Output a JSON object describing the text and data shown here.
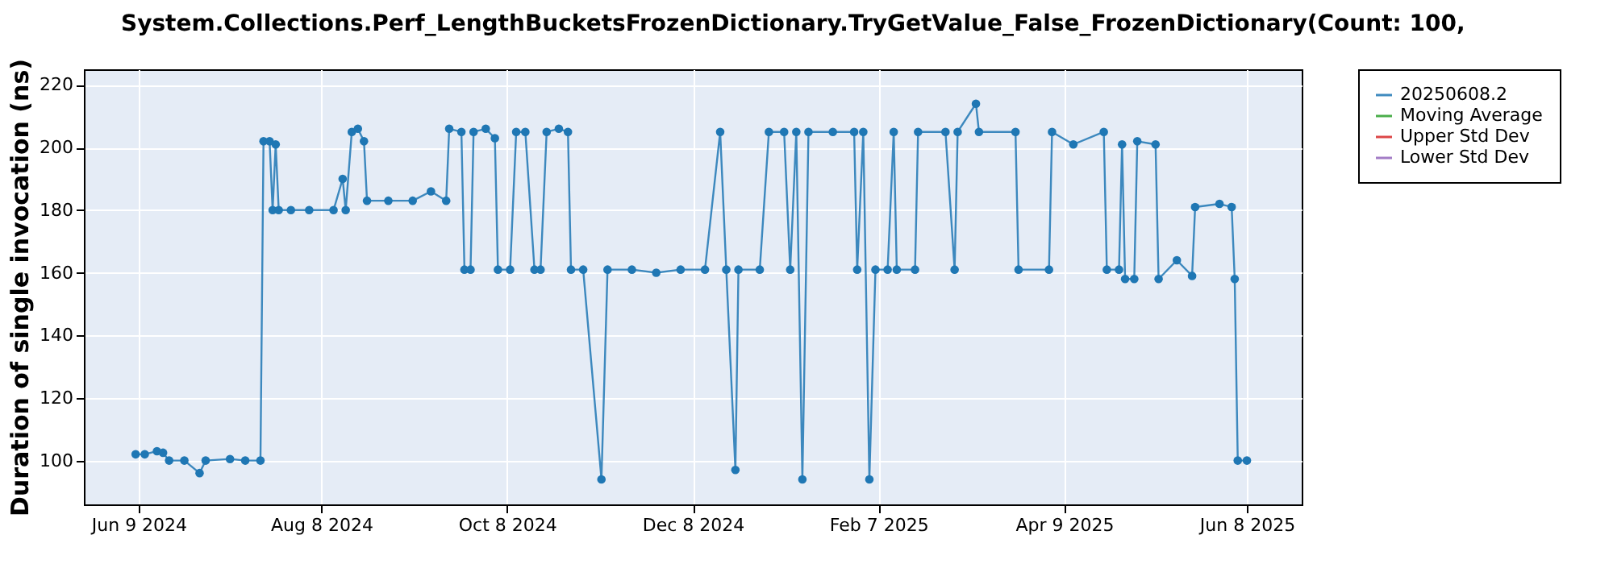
{
  "chart_data": {
    "type": "line",
    "title": "System.Collections.Perf_LengthBucketsFrozenDictionary.TryGetValue_False_FrozenDictionary(Count: 100,",
    "ylabel": "Duration of single invocation (ns)",
    "x": [
      "2024-06-08",
      "2024-06-11",
      "2024-06-15",
      "2024-06-17",
      "2024-06-19",
      "2024-06-24",
      "2024-06-29",
      "2024-07-01",
      "2024-07-09",
      "2024-07-14",
      "2024-07-19",
      "2024-07-20",
      "2024-07-22",
      "2024-07-23",
      "2024-07-24",
      "2024-07-25",
      "2024-07-29",
      "2024-08-04",
      "2024-08-12",
      "2024-08-15",
      "2024-08-16",
      "2024-08-18",
      "2024-08-20",
      "2024-08-22",
      "2024-08-23",
      "2024-08-30",
      "2024-09-07",
      "2024-09-13",
      "2024-09-18",
      "2024-09-19",
      "2024-09-23",
      "2024-09-24",
      "2024-09-26",
      "2024-09-27",
      "2024-10-01",
      "2024-10-04",
      "2024-10-05",
      "2024-10-09",
      "2024-10-11",
      "2024-10-14",
      "2024-10-17",
      "2024-10-19",
      "2024-10-21",
      "2024-10-25",
      "2024-10-28",
      "2024-10-29",
      "2024-11-02",
      "2024-11-08",
      "2024-11-10",
      "2024-11-18",
      "2024-11-26",
      "2024-12-04",
      "2024-12-12",
      "2024-12-17",
      "2024-12-19",
      "2024-12-22",
      "2024-12-23",
      "2024-12-30",
      "2025-01-02",
      "2025-01-07",
      "2025-01-09",
      "2025-01-11",
      "2025-01-13",
      "2025-01-15",
      "2025-01-23",
      "2025-01-30",
      "2025-01-31",
      "2025-02-02",
      "2025-02-04",
      "2025-02-06",
      "2025-02-10",
      "2025-02-12",
      "2025-02-13",
      "2025-02-19",
      "2025-02-20",
      "2025-03-01",
      "2025-03-04",
      "2025-03-05",
      "2025-03-11",
      "2025-03-12",
      "2025-03-24",
      "2025-03-25",
      "2025-04-04",
      "2025-04-05",
      "2025-04-12",
      "2025-04-22",
      "2025-04-23",
      "2025-04-27",
      "2025-04-28",
      "2025-04-29",
      "2025-05-02",
      "2025-05-03",
      "2025-05-09",
      "2025-05-10",
      "2025-05-16",
      "2025-05-21",
      "2025-05-22",
      "2025-05-30",
      "2025-06-03",
      "2025-06-04",
      "2025-06-05",
      "2025-06-08"
    ],
    "series": [
      {
        "name": "20250608.2",
        "color": "#1f77b4",
        "values": [
          102,
          102,
          103,
          102.5,
          100,
          100,
          96,
          100,
          100.5,
          100,
          100,
          202,
          202,
          180,
          201,
          180,
          180,
          180,
          180,
          190,
          180,
          205,
          206,
          202,
          183,
          183,
          183,
          186,
          183,
          206,
          205,
          161,
          161,
          205,
          206,
          203,
          161,
          161,
          205,
          205,
          161,
          161,
          205,
          206,
          205,
          161,
          161,
          94,
          161,
          161,
          160,
          161,
          161,
          205,
          161,
          97,
          161,
          161,
          205,
          205,
          161,
          205,
          94,
          205,
          205,
          205,
          161,
          205,
          94,
          161,
          161,
          205,
          161,
          161,
          205,
          205,
          161,
          205,
          214,
          205,
          205,
          161,
          161,
          205,
          201,
          205,
          161,
          161,
          201,
          158,
          158,
          202,
          201,
          158,
          164,
          159,
          181,
          182,
          181,
          158,
          100,
          100
        ]
      },
      {
        "name": "Moving Average",
        "color": "#2ca02c",
        "values": [
          null,
          null,
          null,
          null,
          null,
          null,
          null,
          null,
          null,
          null,
          null,
          null,
          null,
          null,
          null,
          null,
          null,
          null,
          null,
          null,
          null,
          null,
          null,
          null,
          null,
          null,
          null,
          null,
          null,
          null,
          null,
          null,
          null,
          null,
          null,
          null,
          null,
          null,
          null,
          null,
          null,
          null,
          null,
          null,
          null,
          null,
          null,
          null,
          null,
          null,
          null,
          null,
          null,
          null,
          null,
          null,
          null,
          null,
          null,
          null,
          null,
          null,
          null,
          null,
          null,
          null,
          null,
          null,
          null,
          null,
          null,
          null,
          null,
          null,
          null,
          null,
          null,
          null,
          null,
          null,
          null,
          null,
          null,
          null,
          null,
          null,
          null,
          null,
          null,
          null,
          null,
          null,
          null,
          null,
          null,
          null,
          null,
          null,
          null,
          null,
          null,
          null
        ]
      },
      {
        "name": "Upper Std Dev",
        "color": "#d62728",
        "values": [
          null,
          null,
          null,
          null,
          null,
          null,
          null,
          null,
          null,
          null,
          null,
          null,
          null,
          null,
          null,
          null,
          null,
          null,
          null,
          null,
          null,
          null,
          null,
          null,
          null,
          null,
          null,
          null,
          null,
          null,
          null,
          null,
          null,
          null,
          null,
          null,
          null,
          null,
          null,
          null,
          null,
          null,
          null,
          null,
          null,
          null,
          null,
          null,
          null,
          null,
          null,
          null,
          null,
          null,
          null,
          null,
          null,
          null,
          null,
          null,
          null,
          null,
          null,
          null,
          null,
          null,
          null,
          null,
          null,
          null,
          null,
          null,
          null,
          null,
          null,
          null,
          null,
          null,
          null,
          null,
          null,
          null,
          null,
          null,
          null,
          null,
          null,
          null,
          null,
          null,
          null,
          null,
          null,
          null,
          null,
          null,
          null,
          null,
          null,
          null,
          null,
          null
        ]
      },
      {
        "name": "Lower Std Dev",
        "color": "#9467bd",
        "values": [
          null,
          null,
          null,
          null,
          null,
          null,
          null,
          null,
          null,
          null,
          null,
          null,
          null,
          null,
          null,
          null,
          null,
          null,
          null,
          null,
          null,
          null,
          null,
          null,
          null,
          null,
          null,
          null,
          null,
          null,
          null,
          null,
          null,
          null,
          null,
          null,
          null,
          null,
          null,
          null,
          null,
          null,
          null,
          null,
          null,
          null,
          null,
          null,
          null,
          null,
          null,
          null,
          null,
          null,
          null,
          null,
          null,
          null,
          null,
          null,
          null,
          null,
          null,
          null,
          null,
          null,
          null,
          null,
          null,
          null,
          null,
          null,
          null,
          null,
          null,
          null,
          null,
          null,
          null,
          null,
          null,
          null,
          null,
          null,
          null,
          null,
          null,
          null,
          null,
          null,
          null,
          null,
          null,
          null,
          null,
          null,
          null,
          null,
          null,
          null,
          null,
          null
        ]
      }
    ],
    "xlim": [
      "2024-05-22",
      "2025-06-26"
    ],
    "xticks": [
      {
        "value": "2024-06-09",
        "label": "Jun 9 2024"
      },
      {
        "value": "2024-08-08",
        "label": "Aug 8 2024"
      },
      {
        "value": "2024-10-08",
        "label": "Oct 8 2024"
      },
      {
        "value": "2024-12-08",
        "label": "Dec 8 2024"
      },
      {
        "value": "2025-02-07",
        "label": "Feb 7 2025"
      },
      {
        "value": "2025-04-09",
        "label": "Apr 9 2025"
      },
      {
        "value": "2025-06-08",
        "label": "Jun 8 2025"
      }
    ],
    "ylim": [
      86,
      225
    ],
    "yticks": [
      100,
      120,
      140,
      160,
      180,
      200,
      220
    ],
    "grid": true,
    "legend": "right",
    "marker": "circle",
    "line_style": "solid"
  }
}
